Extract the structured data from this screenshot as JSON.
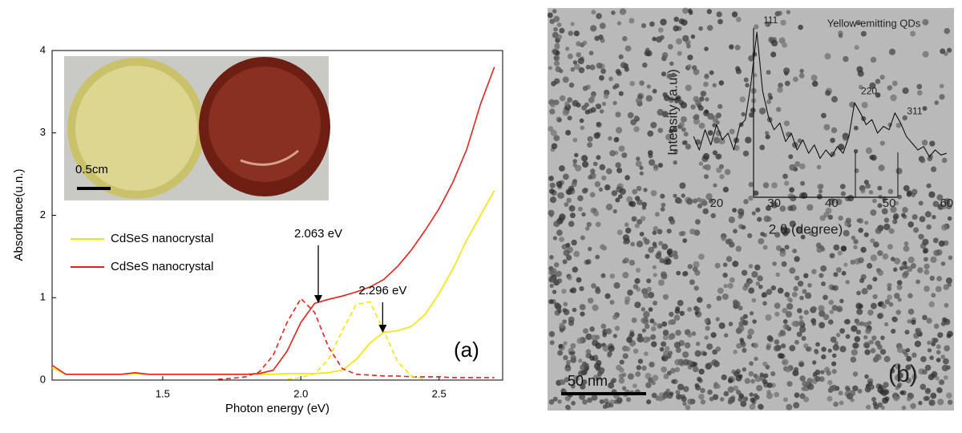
{
  "chart_data": [
    {
      "type": "line",
      "xlabel": "Photon energy (eV)",
      "ylabel": "Absorbance(u.n.)",
      "xlim": [
        1.1,
        2.73
      ],
      "xticks": [
        1.5,
        {
          "value": 2,
          "label": "2.0"
        },
        2.5
      ],
      "ylim": [
        0,
        4
      ],
      "yticks": [
        0,
        1,
        2,
        3,
        4
      ],
      "x": [
        1.1,
        1.15,
        1.2,
        1.25,
        1.3,
        1.35,
        1.4,
        1.45,
        1.5,
        1.55,
        1.6,
        1.65,
        1.7,
        1.75,
        1.8,
        1.85,
        1.9,
        1.95,
        2.0,
        2.05,
        2.1,
        2.15,
        2.2,
        2.25,
        2.3,
        2.35,
        2.4,
        2.45,
        2.5,
        2.55,
        2.6,
        2.65,
        2.7
      ],
      "series": [
        {
          "name": "CdSeS nanocrystal",
          "color": "#f2e600",
          "dashed": false,
          "values": [
            0.15,
            0.07,
            0.07,
            0.07,
            0.07,
            0.07,
            0.08,
            0.07,
            0.07,
            0.07,
            0.07,
            0.07,
            0.07,
            0.07,
            0.07,
            0.07,
            0.07,
            0.08,
            0.08,
            0.08,
            0.09,
            0.12,
            0.25,
            0.45,
            0.58,
            0.6,
            0.65,
            0.8,
            1.05,
            1.35,
            1.7,
            2.0,
            2.3
          ]
        },
        {
          "name": "CdSeS nanocrystal",
          "color": "#e3221b",
          "dashed": false,
          "values": [
            0.18,
            0.07,
            0.07,
            0.07,
            0.07,
            0.07,
            0.09,
            0.07,
            0.07,
            0.07,
            0.07,
            0.07,
            0.07,
            0.07,
            0.07,
            0.08,
            0.12,
            0.35,
            0.7,
            0.93,
            0.98,
            1.02,
            1.07,
            1.13,
            1.22,
            1.38,
            1.58,
            1.82,
            2.08,
            2.4,
            2.8,
            3.35,
            3.8
          ]
        },
        {
          "color": "#e3221b",
          "dashed": true,
          "values": [
            null,
            null,
            null,
            null,
            null,
            null,
            null,
            null,
            null,
            null,
            null,
            null,
            0.01,
            0.02,
            0.04,
            0.1,
            0.3,
            0.7,
            0.99,
            0.82,
            0.4,
            0.14,
            0.07,
            0.06,
            0.05,
            0.05,
            0.04,
            0.04,
            0.04,
            0.03,
            0.03,
            0.03,
            0.03
          ]
        },
        {
          "color": "#f2e600",
          "dashed": true,
          "values": [
            null,
            null,
            null,
            null,
            null,
            null,
            null,
            null,
            null,
            null,
            null,
            null,
            null,
            null,
            null,
            null,
            null,
            0.01,
            0.03,
            0.08,
            0.25,
            0.6,
            0.92,
            0.95,
            0.6,
            0.22,
            0.05,
            0.01,
            null,
            null,
            null,
            null,
            null
          ]
        }
      ],
      "annotations": [
        {
          "text": "2.063 eV",
          "x": 2.063
        },
        {
          "text": "2.296 eV",
          "x": 2.296
        }
      ],
      "panel_label": "(a)"
    },
    {
      "type": "line",
      "title": "Yellow-emitting QDs",
      "xlabel": "2 θ (degree)",
      "ylabel": "Intensity (a.u.)",
      "xlim": [
        15,
        61
      ],
      "xticks": [
        20,
        30,
        40,
        50,
        60
      ],
      "ylim": [
        0,
        100
      ],
      "x": [
        16,
        17,
        18,
        19,
        20,
        21,
        22,
        23,
        24,
        25,
        26,
        27,
        28,
        29,
        30,
        31,
        32,
        33,
        34,
        35,
        36,
        37,
        38,
        39,
        40,
        41,
        42,
        43,
        44,
        45,
        46,
        47,
        48,
        49,
        50,
        51,
        52,
        53,
        54,
        55,
        56,
        57,
        58,
        59,
        60
      ],
      "series": [
        {
          "color": "#111111",
          "dashed": false,
          "values": [
            38,
            30,
            42,
            33,
            45,
            36,
            40,
            30,
            44,
            48,
            70,
            100,
            65,
            50,
            42,
            46,
            35,
            40,
            30,
            36,
            28,
            33,
            25,
            30,
            26,
            32,
            28,
            38,
            58,
            52,
            45,
            48,
            40,
            44,
            42,
            52,
            46,
            38,
            34,
            30,
            32,
            26,
            30,
            27,
            28
          ]
        }
      ],
      "annotations": [
        {
          "text": "111",
          "x": 27
        },
        {
          "text": "220",
          "x": 44
        },
        {
          "text": "311",
          "x": 52
        }
      ]
    }
  ],
  "photo_inset": {
    "scale_bar": "0.5cm"
  },
  "tem_image": {
    "scale_bar": "50 nm",
    "panel_label": "(b)"
  }
}
